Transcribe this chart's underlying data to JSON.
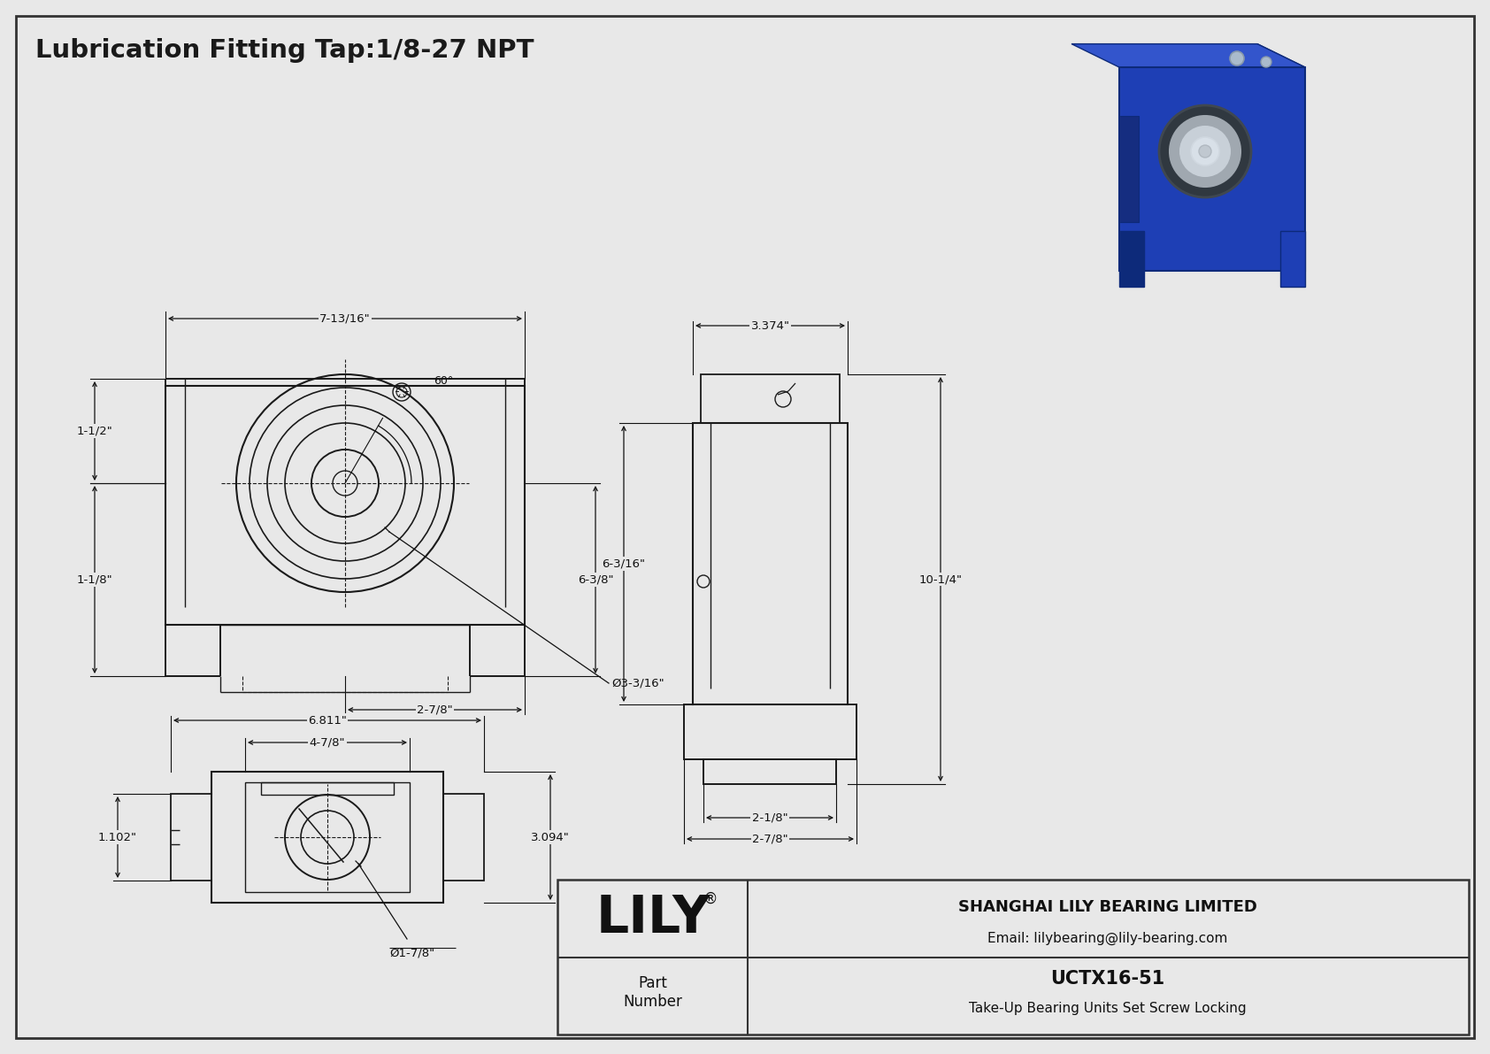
{
  "title": "Lubrication Fitting Tap:1/8-27 NPT",
  "bg_color": "#e8e8e8",
  "line_color": "#1a1a1a",
  "border_color": "#444444",
  "dim_color": "#111111",
  "company": "SHANGHAI LILY BEARING LIMITED",
  "email": "Email: lilybearing@lily-bearing.com",
  "part_label": "Part\nNumber",
  "part_number": "UCTX16-51",
  "part_desc": "Take-Up Bearing Units Set Screw Locking",
  "lily_text": "LILY",
  "dims_front": {
    "width_top": "7-13/16\"",
    "height_right": "6-3/8\"",
    "width_bottom_left": "2-7/8\"",
    "dia_bore": "Ø3-3/16\"",
    "height_left_top": "1-1/2\"",
    "height_left_bottom": "1-1/8\"",
    "angle": "60°"
  },
  "dims_side": {
    "width_top": "3.374\"",
    "height_left": "6-3/16\"",
    "height_right": "10-1/4\"",
    "width_bottom1": "2-1/8\"",
    "width_bottom2": "2-7/8\""
  },
  "dims_bottom": {
    "width_outer": "6.811\"",
    "width_inner": "4-7/8\"",
    "height_right": "3.094\"",
    "height_left": "1.102\"",
    "dia_bore": "Ø1-7/8\""
  }
}
